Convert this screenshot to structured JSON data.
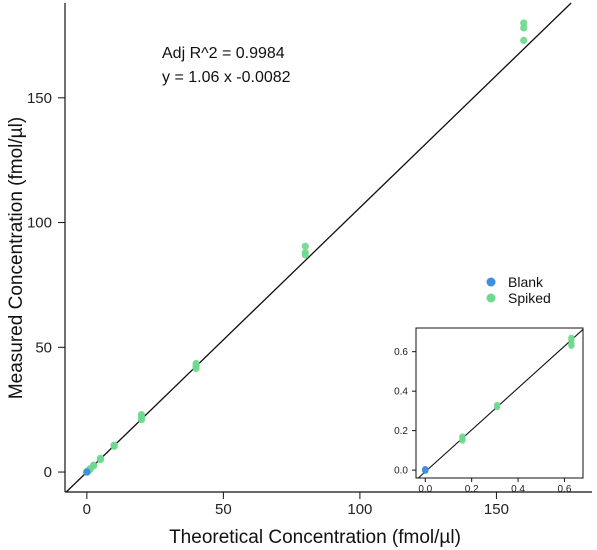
{
  "chart_data": [
    {
      "type": "scatter",
      "xlabel": "Theoretical Concentration (fmol/µl)",
      "ylabel": "Measured Concentration (fmol/µl)",
      "xlim": [
        -8,
        185
      ],
      "ylim": [
        -8,
        188
      ],
      "xticks": [
        0,
        50,
        100,
        150
      ],
      "yticks": [
        0,
        50,
        100,
        150
      ],
      "xtick_labels": [
        "0",
        "50",
        "100",
        "150"
      ],
      "ytick_labels": [
        "0",
        "50",
        "100",
        "150"
      ],
      "grid": false,
      "annotations": [
        "Adj R^2 =  0.9984",
        "y =  1.06 x  -0.0082"
      ],
      "fit_line": {
        "slope": 1.06,
        "intercept": -0.0082
      },
      "legend": {
        "placement": "right",
        "entries": [
          "Blank",
          "Spiked"
        ]
      },
      "series": [
        {
          "name": "Blank",
          "color": "#3f8fe0",
          "x": [
            0,
            0,
            0
          ],
          "y": [
            0.0,
            0.0,
            0.0
          ]
        },
        {
          "name": "Spiked",
          "color": "#6ed98c",
          "x": [
            0.16,
            0.16,
            0.16,
            0.31,
            0.31,
            0.63,
            0.63,
            0.63,
            1.25,
            1.25,
            2.5,
            2.5,
            5,
            5,
            10,
            10,
            20,
            20,
            20,
            40,
            40,
            40,
            80,
            80,
            80,
            160,
            160,
            160
          ],
          "y": [
            0.15,
            0.17,
            0.18,
            0.32,
            0.33,
            0.63,
            0.65,
            0.67,
            1.2,
            1.4,
            2.5,
            2.8,
            5,
            5.5,
            10.3,
            10.8,
            21,
            22,
            23,
            41.5,
            42.5,
            43.5,
            87,
            88,
            90.5,
            173,
            178,
            180
          ]
        }
      ]
    },
    {
      "type": "scatter",
      "xlim": [
        -0.04,
        0.68
      ],
      "ylim": [
        -0.04,
        0.72
      ],
      "xticks": [
        0,
        0.2,
        0.4,
        0.6
      ],
      "yticks": [
        0,
        0.2,
        0.4,
        0.6
      ],
      "xtick_labels": [
        "0.0",
        "0.2",
        "0.4",
        "0.6"
      ],
      "ytick_labels": [
        "0.0",
        "0.2",
        "0.4",
        "0.6"
      ],
      "grid": false,
      "fit_line": {
        "slope": 1.06,
        "intercept": -0.0082
      },
      "series": [
        {
          "name": "Blank",
          "color": "#3f8fe0",
          "x": [
            0,
            0,
            0
          ],
          "y": [
            0.0,
            0.005,
            -0.003
          ]
        },
        {
          "name": "Spiked",
          "color": "#6ed98c",
          "x": [
            0.16,
            0.16,
            0.16,
            0.31,
            0.31,
            0.63,
            0.63,
            0.63,
            0.63
          ],
          "y": [
            0.15,
            0.16,
            0.17,
            0.32,
            0.33,
            0.63,
            0.64,
            0.66,
            0.67
          ]
        }
      ]
    }
  ]
}
